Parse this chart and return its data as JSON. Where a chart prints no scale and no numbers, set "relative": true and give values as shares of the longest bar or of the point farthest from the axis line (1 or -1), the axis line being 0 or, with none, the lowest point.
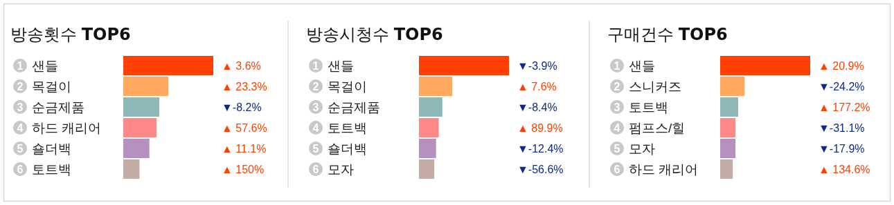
{
  "chart_data": [
    {
      "type": "bar",
      "orientation": "horizontal",
      "relative": true,
      "title": "방송횟수 **TOP6**",
      "categories": [
        "샌들",
        "목걸이",
        "순금제품",
        "하드 캐리어",
        "숄더백",
        "토트백"
      ],
      "values": [
        1,
        0.5,
        0.4,
        0.37,
        0.29,
        0.18
      ],
      "colors": [
        "#ff4000",
        "#ffa860",
        "#8fb8b8",
        "#ff8888",
        "#b590c0",
        "#c4aca6"
      ],
      "annotations": [
        "1",
        "2",
        "3",
        "4",
        "5",
        "6",
        "▲ 3.6%",
        "▲ 23.3%",
        "▼-8.2%",
        "▲ 57.6%",
        "▲ 11.1%",
        "▲ 150%"
      ]
    },
    {
      "type": "bar",
      "orientation": "horizontal",
      "relative": true,
      "title": "방송시청수 **TOP6**",
      "categories": [
        "샌들",
        "목걸이",
        "순금제품",
        "토트백",
        "숄더백",
        "모자"
      ],
      "values": [
        1,
        0.37,
        0.26,
        0.22,
        0.19,
        0.17
      ],
      "colors": [
        "#ff4000",
        "#ffa860",
        "#8fb8b8",
        "#ff8888",
        "#b590c0",
        "#c4aca6"
      ],
      "annotations": [
        "1",
        "2",
        "3",
        "4",
        "5",
        "6",
        "▼-3.9%",
        "▲ 7.6%",
        "▼-8.4%",
        "▲ 89.9%",
        "▼-12.4%",
        "▼-56.6%"
      ]
    },
    {
      "type": "bar",
      "orientation": "horizontal",
      "relative": true,
      "title": "구매건수 **TOP6**",
      "categories": [
        "샌들",
        "스니커즈",
        "토트백",
        "펌프스/힐",
        "모자",
        "하드 캐리어"
      ],
      "values": [
        1,
        0.27,
        0.2,
        0.17,
        0.17,
        0.14
      ],
      "colors": [
        "#ff4000",
        "#ffa860",
        "#8fb8b8",
        "#ff8888",
        "#b590c0",
        "#c4aca6"
      ],
      "annotations": [
        "1",
        "2",
        "3",
        "4",
        "5",
        "6",
        "▲ 20.9%",
        "▼-24.2%",
        "▲ 177.2%",
        "▼-31.1%",
        "▼-17.9%",
        "▲ 134.6%"
      ]
    }
  ]
}
